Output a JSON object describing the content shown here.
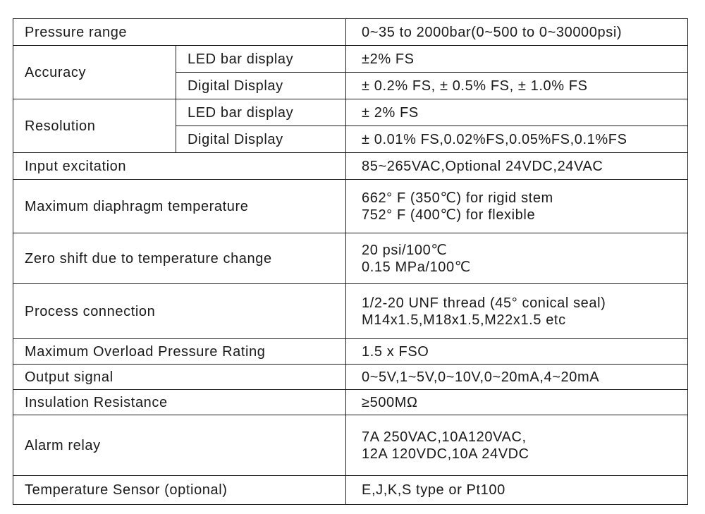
{
  "rows": [
    {
      "label": "Pressure range",
      "value": [
        "0~35 to 2000bar(0~500 to 0~30000psi)"
      ]
    },
    {
      "label": "Accuracy",
      "sub": [
        {
          "label": "LED bar display",
          "value": [
            "±2% FS"
          ]
        },
        {
          "label": "Digital Display",
          "value": [
            "± 0.2% FS, ± 0.5% FS, ± 1.0% FS"
          ]
        }
      ]
    },
    {
      "label": "Resolution",
      "sub": [
        {
          "label": "LED bar display",
          "value": [
            "± 2% FS"
          ]
        },
        {
          "label": "Digital Display",
          "value": [
            "± 0.01% FS,0.02%FS,0.05%FS,0.1%FS"
          ]
        }
      ]
    },
    {
      "label": "Input excitation",
      "value": [
        "85~265VAC,Optional 24VDC,24VAC"
      ]
    },
    {
      "label": "Maximum diaphragm temperature",
      "value": [
        "662° F (350℃) for rigid stem",
        "752° F (400℃) for flexible"
      ]
    },
    {
      "label": "Zero shift due to temperature change",
      "value": [
        "20 psi/100℃",
        "0.15 MPa/100℃"
      ]
    },
    {
      "label": "Process connection",
      "value": [
        "1/2-20 UNF thread (45° conical seal)",
        "M14x1.5,M18x1.5,M22x1.5 etc"
      ]
    },
    {
      "label": "Maximum Overload Pressure Rating",
      "value": [
        "1.5 x FSO"
      ]
    },
    {
      "label": "Output signal",
      "value": [
        "0~5V,1~5V,0~10V,0~20mA,4~20mA"
      ]
    },
    {
      "label": "Insulation Resistance",
      "value": [
        "≥500MΩ"
      ]
    },
    {
      "label": "Alarm relay",
      "value": [
        "7A 250VAC,10A120VAC,",
        "12A 120VDC,10A 24VDC"
      ]
    },
    {
      "label": "Temperature Sensor (optional)",
      "value": [
        "E,J,K,S type or Pt100"
      ]
    }
  ]
}
